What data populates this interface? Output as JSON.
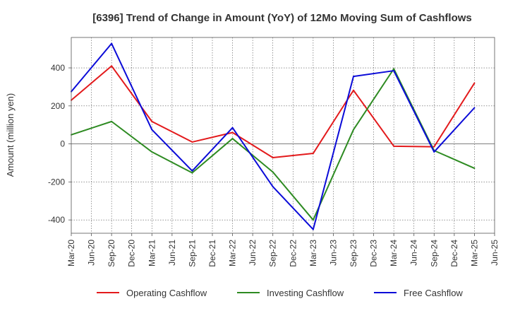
{
  "chart_data": {
    "type": "line",
    "title": "[6396]  Trend of Change in Amount (YoY) of 12Mo Moving Sum of Cashflows",
    "xlabel": "",
    "ylabel": "Amount (million yen)",
    "ylim": [
      -470,
      560
    ],
    "yticks": [
      -400,
      -200,
      0,
      200,
      400
    ],
    "ytick_labels": [
      "-400",
      "-200",
      "0",
      "200",
      "400"
    ],
    "grid": true,
    "legend_position": "bottom",
    "x": [
      "Mar-20",
      "Jun-20",
      "Sep-20",
      "Dec-20",
      "Mar-21",
      "Jun-21",
      "Sep-21",
      "Dec-21",
      "Mar-22",
      "Jun-22",
      "Sep-22",
      "Dec-22",
      "Mar-23",
      "Jun-23",
      "Sep-23",
      "Dec-23",
      "Mar-24",
      "Jun-24",
      "Sep-24",
      "Dec-24",
      "Mar-25",
      "Jun-25"
    ],
    "series": [
      {
        "name": "Operating Cashflow",
        "color": "#e31a1c",
        "points": [
          {
            "x": "Mar-20",
            "y": 230
          },
          {
            "x": "Sep-20",
            "y": 410
          },
          {
            "x": "Mar-21",
            "y": 118
          },
          {
            "x": "Sep-21",
            "y": 10
          },
          {
            "x": "Mar-22",
            "y": 60
          },
          {
            "x": "Sep-22",
            "y": -72
          },
          {
            "x": "Mar-23",
            "y": -50
          },
          {
            "x": "Sep-23",
            "y": 282
          },
          {
            "x": "Mar-24",
            "y": -12
          },
          {
            "x": "Sep-24",
            "y": -15
          },
          {
            "x": "Mar-25",
            "y": 320
          }
        ]
      },
      {
        "name": "Investing Cashflow",
        "color": "#2e8b22",
        "points": [
          {
            "x": "Mar-20",
            "y": 48
          },
          {
            "x": "Sep-20",
            "y": 118
          },
          {
            "x": "Mar-21",
            "y": -42
          },
          {
            "x": "Sep-21",
            "y": -152
          },
          {
            "x": "Mar-22",
            "y": 28
          },
          {
            "x": "Sep-22",
            "y": -148
          },
          {
            "x": "Mar-23",
            "y": -400
          },
          {
            "x": "Sep-23",
            "y": 75
          },
          {
            "x": "Mar-24",
            "y": 395
          },
          {
            "x": "Sep-24",
            "y": -35
          },
          {
            "x": "Mar-25",
            "y": -128
          }
        ]
      },
      {
        "name": "Free Cashflow",
        "color": "#0b0bd8",
        "points": [
          {
            "x": "Mar-20",
            "y": 275
          },
          {
            "x": "Sep-20",
            "y": 528
          },
          {
            "x": "Mar-21",
            "y": 75
          },
          {
            "x": "Sep-21",
            "y": -142
          },
          {
            "x": "Mar-22",
            "y": 85
          },
          {
            "x": "Sep-22",
            "y": -225
          },
          {
            "x": "Mar-23",
            "y": -450
          },
          {
            "x": "Sep-23",
            "y": 355
          },
          {
            "x": "Mar-24",
            "y": 385
          },
          {
            "x": "Sep-24",
            "y": -42
          },
          {
            "x": "Mar-25",
            "y": 190
          }
        ]
      }
    ]
  }
}
